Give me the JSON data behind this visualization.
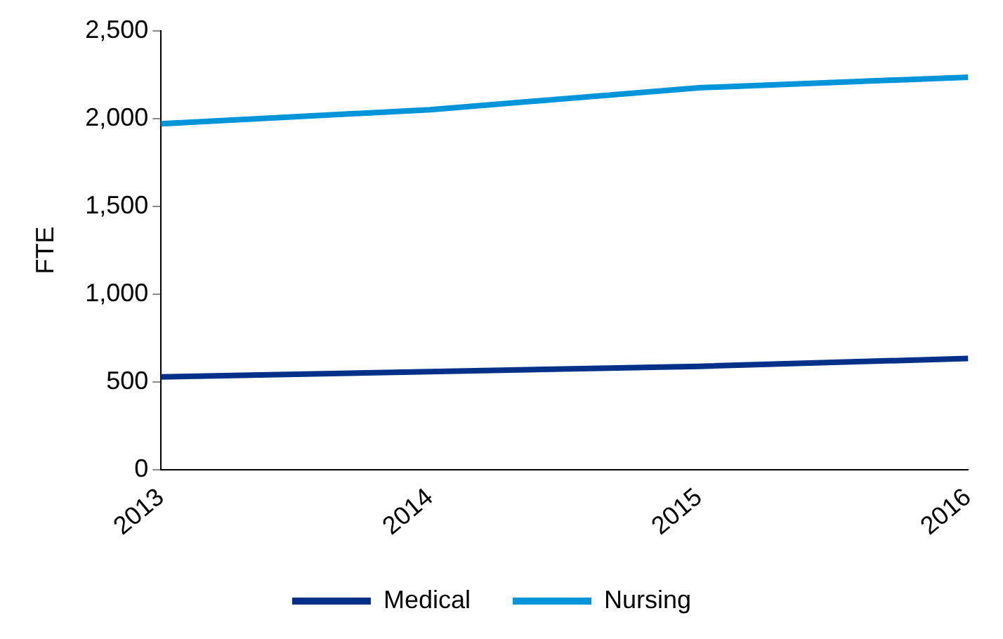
{
  "chart_data": {
    "type": "line",
    "ylabel": "FTE",
    "categories": [
      "2013",
      "2014",
      "2015",
      "2016"
    ],
    "series": [
      {
        "name": "Medical",
        "color": "#003087",
        "values": [
          530,
          560,
          590,
          635
        ]
      },
      {
        "name": "Nursing",
        "color": "#0095d9",
        "values": [
          1970,
          2050,
          2175,
          2235
        ]
      }
    ],
    "ylim": [
      0,
      2500
    ],
    "yticks": [
      {
        "value": 0,
        "label": "0"
      },
      {
        "value": 500,
        "label": "500"
      },
      {
        "value": 1000,
        "label": "1,000"
      },
      {
        "value": 1500,
        "label": "1,500"
      },
      {
        "value": 2000,
        "label": "2,000"
      },
      {
        "value": 2500,
        "label": "2,500"
      }
    ],
    "grid": false,
    "legend": "bottom",
    "marker": "none",
    "line_style": "solid"
  }
}
